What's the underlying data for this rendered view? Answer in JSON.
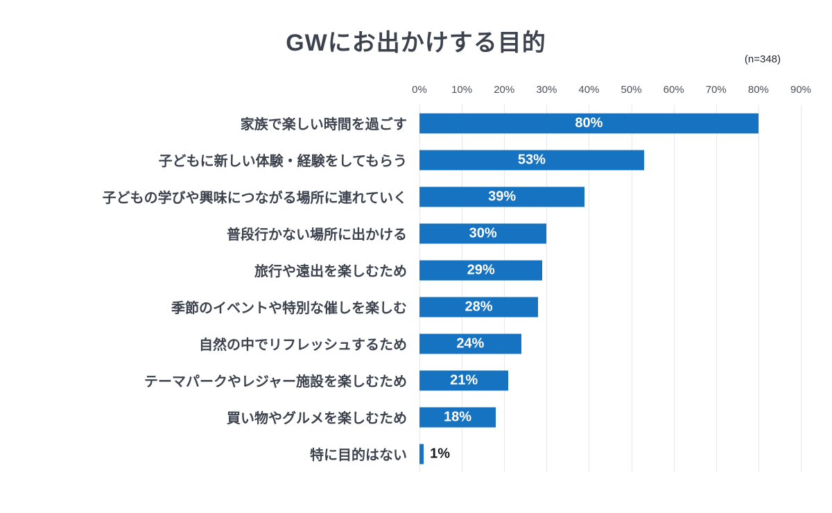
{
  "header": {
    "title": "GWにお出かけする目的",
    "sample": "(n=348)"
  },
  "chart_data": {
    "type": "bar",
    "orientation": "horizontal",
    "title": "GWにお出かけする目的",
    "sample_note": "(n=348)",
    "categories": [
      "家族で楽しい時間を過ごす",
      "子どもに新しい体験・経験をしてもらう",
      "子どもの学びや興味につながる場所に連れていく",
      "普段行かない場所に出かける",
      "旅行や遠出を楽しむため",
      "季節のイベントや特別な催しを楽しむ",
      "自然の中でリフレッシュするため",
      "テーマパークやレジャー施設を楽しむため",
      "買い物やグルメを楽しむため",
      "特に目的はない"
    ],
    "values": [
      80,
      53,
      39,
      30,
      29,
      28,
      24,
      21,
      18,
      1
    ],
    "value_labels": [
      "80%",
      "53%",
      "39%",
      "30%",
      "29%",
      "28%",
      "24%",
      "21%",
      "18%",
      "1%"
    ],
    "ticks": [
      "0%",
      "10%",
      "20%",
      "30%",
      "40%",
      "50%",
      "60%",
      "70%",
      "80%",
      "90%"
    ],
    "xlim": [
      0,
      90
    ],
    "grid": true,
    "bar_color": "#1673c2",
    "grid_color": "#e4e8ee",
    "legend_position": "none"
  }
}
